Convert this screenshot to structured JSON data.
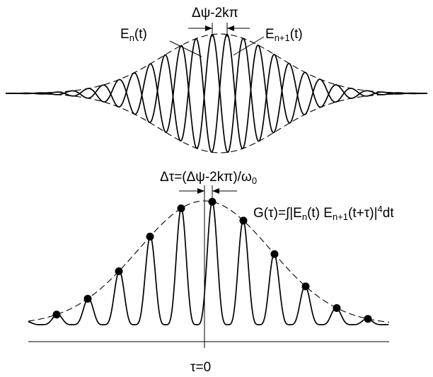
{
  "top_panel": {
    "label_shift": "Δψ-2kπ",
    "label_pulse_n": "E",
    "label_pulse_n_sub": "n",
    "label_pulse_n_arg": "(t)",
    "label_pulse_n1": "E",
    "label_pulse_n1_sub": "n+1",
    "label_pulse_n1_arg": "(t)"
  },
  "bottom_panel": {
    "label_delay_prefix": "Δτ=(Δψ-2kπ)/ω",
    "label_delay_sub": "0",
    "formula_a": "G(τ)=∫|E",
    "formula_a_sub": "n",
    "formula_b": "(t) E",
    "formula_b_sub": "n+1",
    "formula_c": "(t+τ)|",
    "formula_c_sup": "4",
    "formula_d": "dt",
    "label_zero": "τ=0"
  }
}
